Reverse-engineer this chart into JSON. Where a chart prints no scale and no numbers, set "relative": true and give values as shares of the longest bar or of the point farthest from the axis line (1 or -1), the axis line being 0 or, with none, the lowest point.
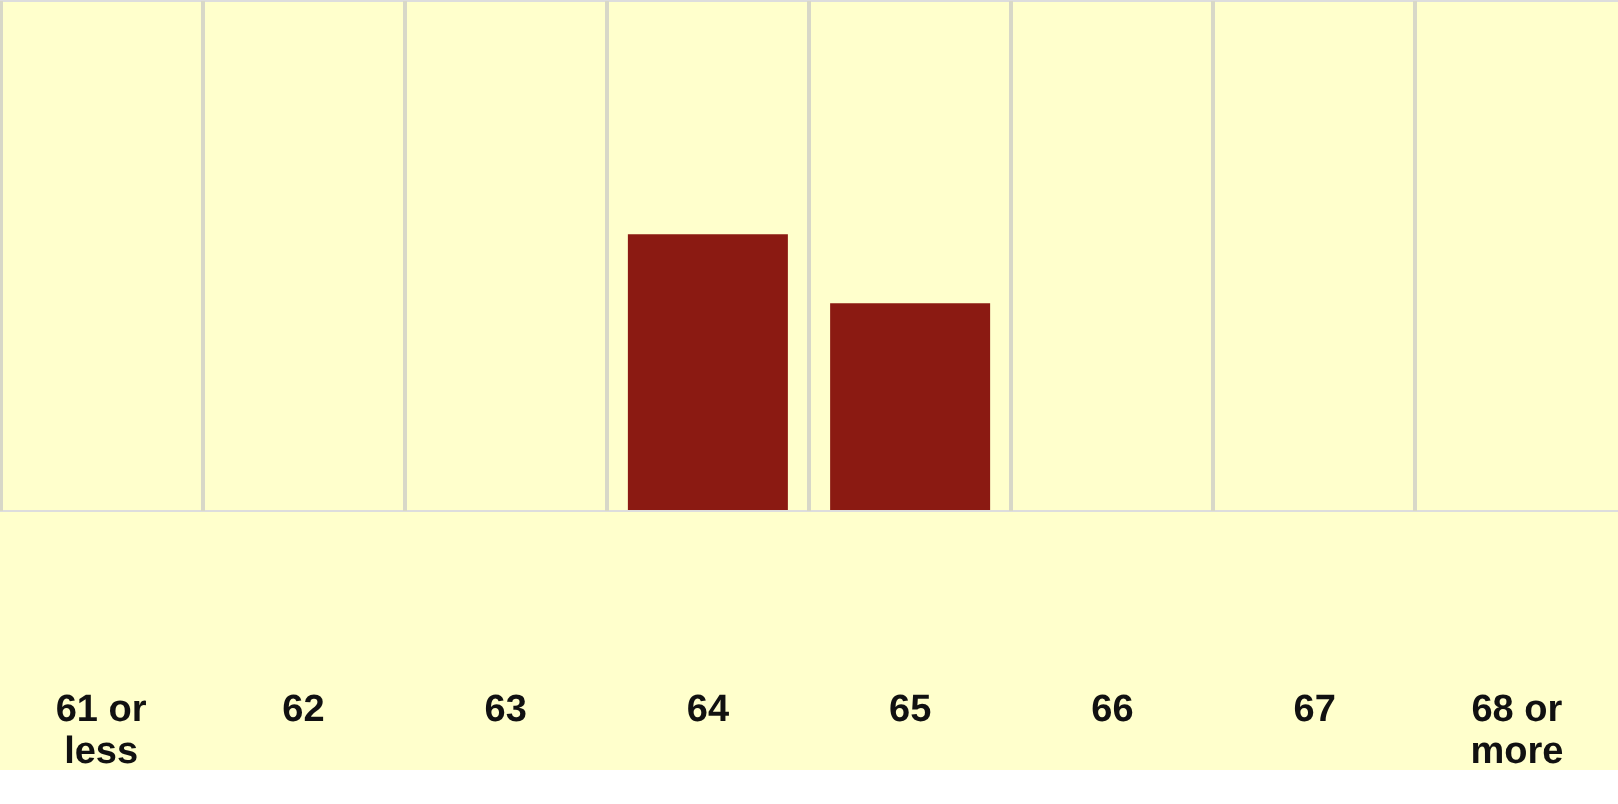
{
  "chart_data": {
    "type": "bar",
    "relative": true,
    "categories": [
      "61 or less",
      "62",
      "63",
      "64",
      "65",
      "66",
      "67",
      "68 or more"
    ],
    "values": [
      0,
      0,
      0,
      1,
      0.75,
      0,
      0,
      0
    ],
    "color": "#8b1a12",
    "grid": "x",
    "tick_labels": "x"
  }
}
